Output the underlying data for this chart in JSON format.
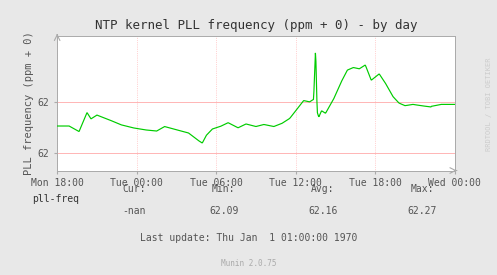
{
  "title": "NTP kernel PLL frequency (ppm + 0) - by day",
  "ylabel": "PLL frequency (ppm + 0)",
  "bg_color": "#e8e8e8",
  "plot_bg_color": "#ffffff",
  "line_color": "#00cc00",
  "grid_color": "#ffaaaa",
  "text_color": "#555555",
  "ylim_min": 61.93,
  "ylim_max": 62.46,
  "ytick_positions": [
    62.0,
    62.2
  ],
  "ytick_labels": [
    "62",
    "62"
  ],
  "xtick_labels": [
    "Mon 18:00",
    "Tue 00:00",
    "Tue 06:00",
    "Tue 12:00",
    "Tue 18:00",
    "Wed 00:00"
  ],
  "legend_label": "pll-freq",
  "legend_color": "#00cc00",
  "cur_val": "-nan",
  "min_val": "62.09",
  "avg_val": "62.16",
  "max_val": "62.27",
  "last_update": "Last update: Thu Jan  1 01:00:00 1970",
  "munin_version": "Munin 2.0.75",
  "rrdtool_label": "RRDTOOL / TOBI OETIKER"
}
